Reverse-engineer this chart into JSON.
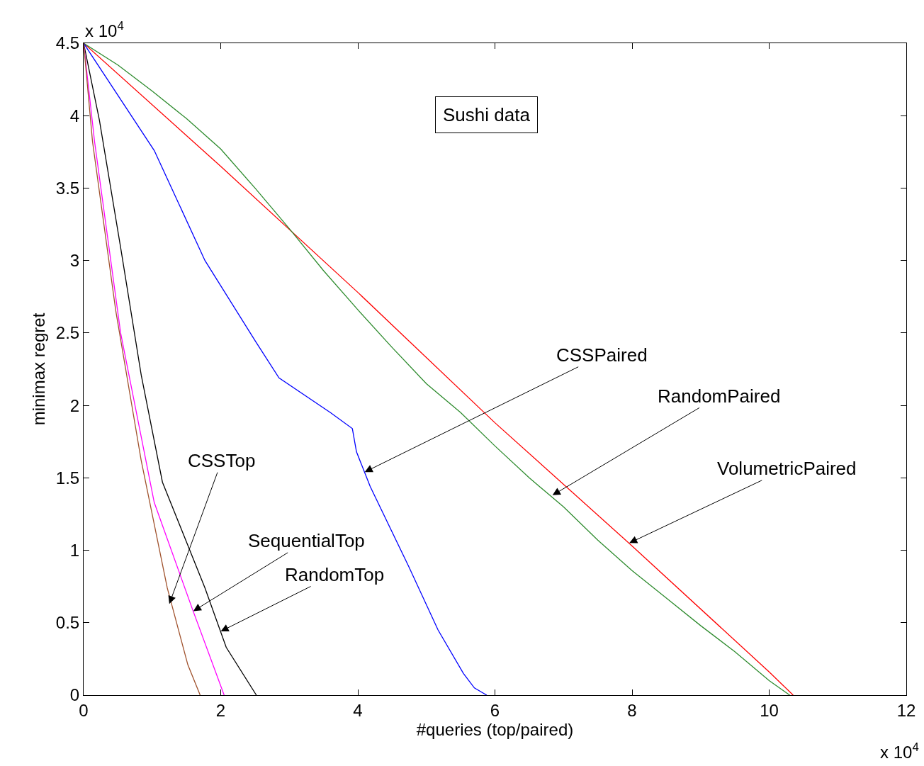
{
  "chart_data": {
    "type": "line",
    "xlabel": "#queries (top/paired)",
    "ylabel": "minimax regret",
    "xlim": [
      0,
      12
    ],
    "ylim": [
      0,
      4.5
    ],
    "xticks": [
      0,
      2,
      4,
      6,
      8,
      10,
      12
    ],
    "yticks": [
      0,
      0.5,
      1,
      1.5,
      2,
      2.5,
      3,
      3.5,
      4,
      4.5
    ],
    "marker": "none",
    "line_style": "solid",
    "series": [
      {
        "color": "#ff0000",
        "x": [
          0,
          2,
          4,
          6,
          8,
          10,
          10.35
        ],
        "values": [
          4.5,
          3.65,
          2.78,
          1.88,
          1.03,
          0.16,
          0
        ]
      },
      {
        "color": "#2e8b2e",
        "x": [
          0,
          0.5,
          1,
          1.5,
          2,
          2.5,
          3,
          3.5,
          4,
          4.5,
          5,
          5.5,
          6,
          6.5,
          7,
          7.5,
          8,
          8.5,
          9,
          9.5,
          10,
          10.3
        ],
        "values": [
          4.5,
          4.35,
          4.17,
          3.98,
          3.77,
          3.5,
          3.22,
          2.93,
          2.66,
          2.4,
          2.15,
          1.95,
          1.72,
          1.5,
          1.3,
          1.07,
          0.86,
          0.67,
          0.48,
          0.3,
          0.1,
          0
        ]
      },
      {
        "color": "#0000ff",
        "x": [
          0,
          1.03,
          1.77,
          2.51,
          2.85,
          3.6,
          3.92,
          3.98,
          4.18,
          4.74,
          5.17,
          5.54,
          5.7,
          5.88
        ],
        "values": [
          4.5,
          3.76,
          3.0,
          2.44,
          2.19,
          1.95,
          1.84,
          1.68,
          1.44,
          0.89,
          0.45,
          0.15,
          0.05,
          0
        ]
      },
      {
        "color": "#000000",
        "x": [
          0,
          0.23,
          0.54,
          0.84,
          1.15,
          1.77,
          2.08,
          2.52
        ],
        "values": [
          4.5,
          3.97,
          3.09,
          2.21,
          1.47,
          0.74,
          0.33,
          0
        ]
      },
      {
        "color": "#ff00ff",
        "x": [
          0,
          0.16,
          0.54,
          1.03,
          1.59,
          2.05
        ],
        "values": [
          4.5,
          3.82,
          2.5,
          1.33,
          0.59,
          0
        ]
      },
      {
        "color": "#a0522d",
        "x": [
          0,
          0.13,
          0.47,
          0.84,
          1.22,
          1.52,
          1.7
        ],
        "values": [
          4.5,
          3.82,
          2.65,
          1.62,
          0.74,
          0.21,
          0
        ]
      }
    ],
    "annotations": [
      "x 10$^{4}$",
      "x 10$^{4}$",
      "Sushi data",
      {
        "text": "CSSPaired",
        "x": 4.1,
        "y": 1.54
      },
      {
        "text": "RandomPaired",
        "x": 6.84,
        "y": 1.38
      },
      {
        "text": "VolumetricPaired",
        "x": 7.96,
        "y": 1.05
      },
      {
        "text": "CSSTop",
        "x": 1.25,
        "y": 0.63
      },
      {
        "text": "SequentialTop",
        "x": 1.6,
        "y": 0.58
      },
      {
        "text": "RandomTop",
        "x": 2.0,
        "y": 0.44
      }
    ]
  }
}
